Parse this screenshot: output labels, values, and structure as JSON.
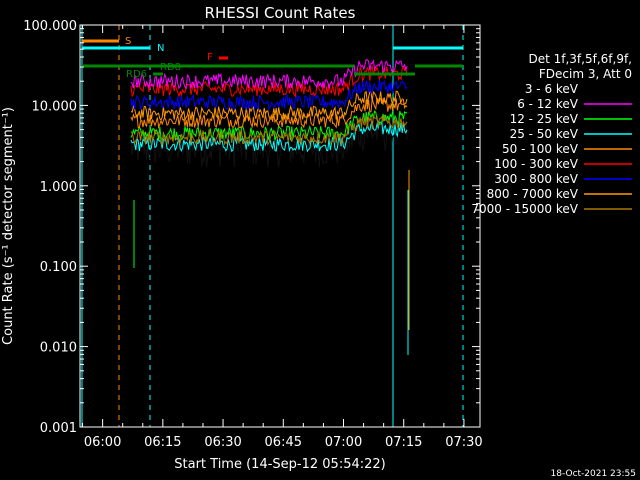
{
  "chart_data": {
    "type": "line",
    "title": "RHESSI Count Rates",
    "xlabel": "Start Time (14-Sep-12 05:54:22)",
    "ylabel": "Count Rate (s⁻¹ detector segment⁻¹)",
    "footer": "18-Oct-2021 23:55",
    "x_scale": "time",
    "y_scale": "log",
    "xlim": [
      "05:54:22",
      "07:34:00"
    ],
    "ylim": [
      0.001,
      100
    ],
    "x_ticks": [
      "06:00",
      "06:15",
      "06:30",
      "06:45",
      "07:00",
      "07:15",
      "07:30"
    ],
    "y_ticks": [
      "100.000",
      "10.000",
      "1.000",
      "0.100",
      "0.010",
      "0.001"
    ],
    "legend": {
      "title_lines": [
        "Det 1f,3f,5f,6f,9f,",
        "FDecim 3, Att 0"
      ],
      "placement": "right"
    },
    "series": [
      {
        "name": "3 - 6 keV",
        "color": "#000000",
        "level": 3.0
      },
      {
        "name": "6 - 12 keV",
        "color": "#ff00ff",
        "level": 20.0
      },
      {
        "name": "12 - 25 keV",
        "color": "#00ff00",
        "level": 4.5
      },
      {
        "name": "25 - 50 keV",
        "color": "#00ffff",
        "level": 3.3
      },
      {
        "name": "50 - 100 keV",
        "color": "#ff8800",
        "level": 6.5
      },
      {
        "name": "100 - 300 keV",
        "color": "#ff0000",
        "level": 16.0
      },
      {
        "name": "300 - 800 keV",
        "color": "#0000ff",
        "level": 11.0
      },
      {
        "name": "800 - 7000 keV",
        "color": "#ff9900",
        "level": 8.0
      },
      {
        "name": "7000 - 15000 keV",
        "color": "#aa7700",
        "level": 4.0
      }
    ],
    "annotations": [
      {
        "label": "S",
        "color": "#ff8800",
        "start": "05:55",
        "end": "06:03"
      },
      {
        "label": "N",
        "color": "#00ffff",
        "start": "05:55",
        "end": "06:12"
      },
      {
        "label": "RD8",
        "color": "#008800",
        "start": "06:13",
        "end": "06:15"
      },
      {
        "label": "RD6",
        "color": "#008800",
        "start": "06:12",
        "end": "06:13"
      },
      {
        "label": "F",
        "color": "#ff0000",
        "start": "06:29",
        "end": "06:31"
      }
    ]
  }
}
